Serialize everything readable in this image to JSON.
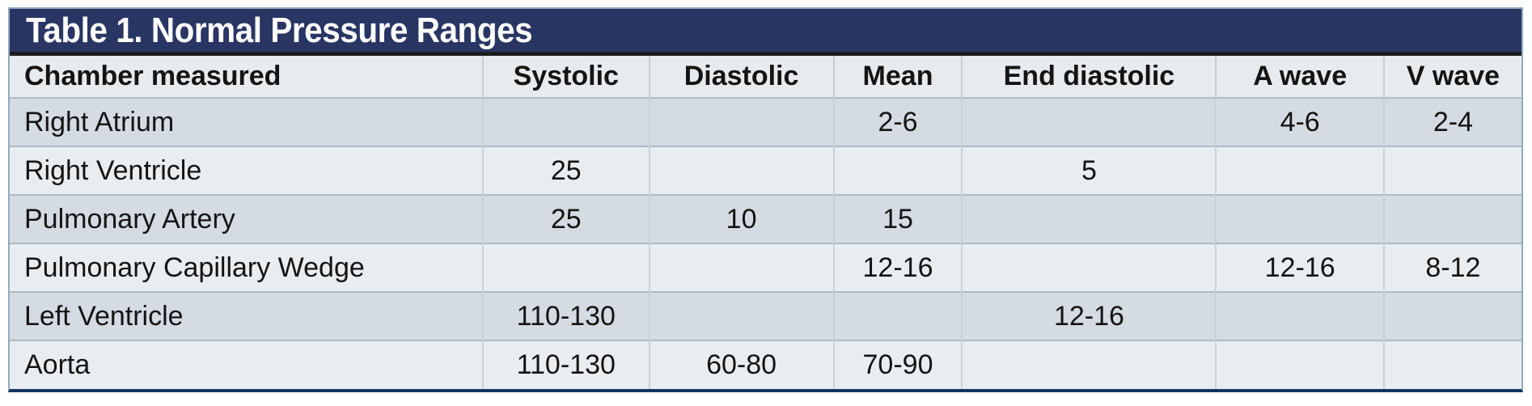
{
  "title": "Table 1. Normal Pressure Ranges",
  "colors": {
    "title_bar_bg": "#293563",
    "title_text": "#ffffff",
    "divider": "#1d1d1f",
    "header_row_bg": "#e8ebee",
    "stripe_dark": "#d4dbe2",
    "stripe_light": "#eaedf0",
    "outer_border": "#8fa9be",
    "bottom_border": "#12365f",
    "text": "#141414"
  },
  "table": {
    "columns": [
      "Chamber measured",
      "Systolic",
      "Diastolic",
      "Mean",
      "End diastolic",
      "A wave",
      "V wave"
    ],
    "rows": [
      [
        "Right Atrium",
        "",
        "",
        "2-6",
        "",
        "4-6",
        "2-4"
      ],
      [
        "Right Ventricle",
        "25",
        "",
        "",
        "5",
        "",
        ""
      ],
      [
        "Pulmonary Artery",
        "25",
        "10",
        "15",
        "",
        "",
        ""
      ],
      [
        "Pulmonary Capillary Wedge",
        "",
        "",
        "12-16",
        "",
        "12-16",
        "8-12"
      ],
      [
        "Left Ventricle",
        "110-130",
        "",
        "",
        "12-16",
        "",
        ""
      ],
      [
        "Aorta",
        "110-130",
        "60-80",
        "70-90",
        "",
        "",
        ""
      ]
    ]
  }
}
